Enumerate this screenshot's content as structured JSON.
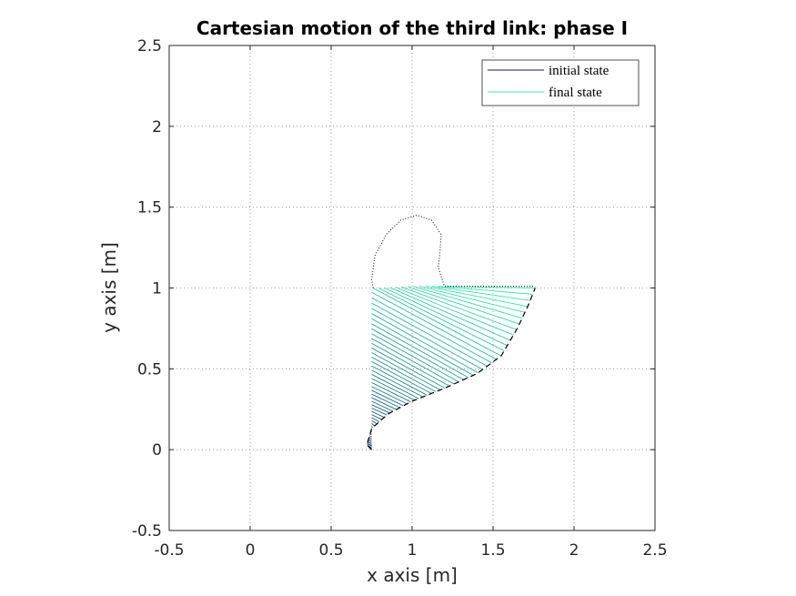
{
  "chart_data": {
    "type": "line",
    "title": "Cartesian motion of the third link: phase I",
    "xlabel": "x axis [m]",
    "ylabel": "y axis [m]",
    "xlim": [
      -0.5,
      2.5
    ],
    "ylim": [
      -0.5,
      2.5
    ],
    "xticks": [
      "-0.5",
      "0",
      "0.5",
      "1",
      "1.5",
      "2",
      "2.5"
    ],
    "yticks": [
      "-0.5",
      "0",
      "0.5",
      "1",
      "1.5",
      "2",
      "2.5"
    ],
    "grid": "dotted",
    "legend": {
      "placement": "top-right",
      "entries": [
        {
          "label": "initial state",
          "color": "#0b1a5c"
        },
        {
          "label": "final state",
          "color": "#3de8b4"
        }
      ]
    },
    "link_segments_count": 60,
    "color_start": "#0b1a5c",
    "color_end": "#3de8b4",
    "start_trajectory": {
      "style": "solid",
      "points": [
        [
          0.75,
          0.0
        ],
        [
          0.75,
          0.2
        ],
        [
          0.75,
          0.4
        ],
        [
          0.75,
          0.6
        ],
        [
          0.75,
          0.8
        ],
        [
          0.75,
          1.0
        ],
        [
          0.76,
          1.0
        ],
        [
          0.8,
          1.0
        ],
        [
          0.9,
          1.005
        ],
        [
          1.0,
          1.01
        ],
        [
          1.1,
          1.012
        ],
        [
          1.2,
          1.01
        ]
      ]
    },
    "end_trajectory": {
      "style": "dashed",
      "points": [
        [
          0.75,
          0.0
        ],
        [
          0.72,
          0.03
        ],
        [
          0.75,
          0.13
        ],
        [
          0.85,
          0.22
        ],
        [
          1.0,
          0.3
        ],
        [
          1.2,
          0.38
        ],
        [
          1.4,
          0.47
        ],
        [
          1.55,
          0.58
        ],
        [
          1.65,
          0.75
        ],
        [
          1.72,
          0.9
        ],
        [
          1.76,
          1.0
        ]
      ]
    },
    "elbow_loop": {
      "style": "dotted",
      "points": [
        [
          0.76,
          1.0
        ],
        [
          0.75,
          1.05
        ],
        [
          0.77,
          1.2
        ],
        [
          0.84,
          1.33
        ],
        [
          0.93,
          1.42
        ],
        [
          1.03,
          1.45
        ],
        [
          1.12,
          1.42
        ],
        [
          1.18,
          1.33
        ],
        [
          1.17,
          1.2
        ],
        [
          1.16,
          1.13
        ],
        [
          1.2,
          1.01
        ],
        [
          1.4,
          1.01
        ],
        [
          1.6,
          1.01
        ],
        [
          1.76,
          1.01
        ]
      ]
    }
  }
}
